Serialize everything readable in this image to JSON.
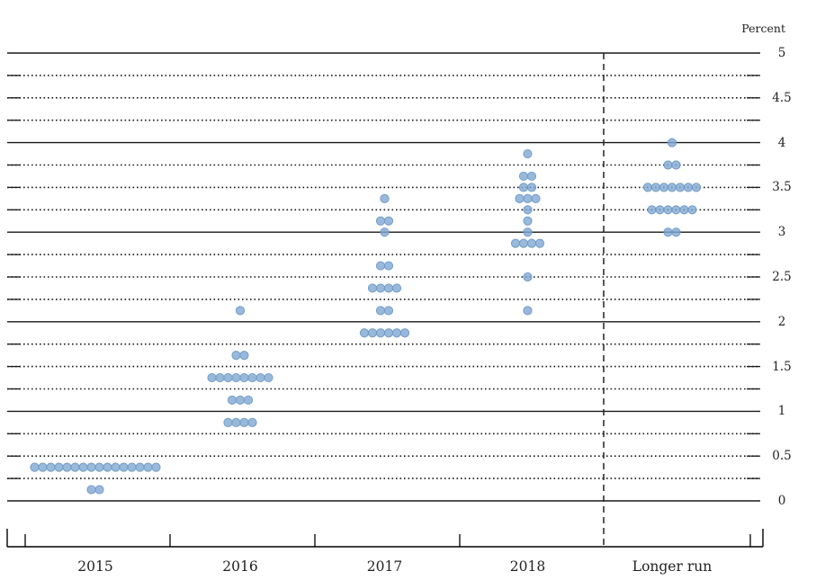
{
  "chart_data": {
    "type": "scatter",
    "subtype": "fomc-dot-plot",
    "unit_label": "Percent",
    "x_categories": [
      "2015",
      "2016",
      "2017",
      "2018",
      "Longer run"
    ],
    "y_axis": {
      "min": 0,
      "max": 5,
      "major_tick_interval": 0.5,
      "minor_grid_interval": 0.25,
      "tick_labels": [
        "5",
        "4.5",
        "4",
        "3.5",
        "3",
        "2.5",
        "2",
        "1.5",
        "1",
        "0.5",
        "0"
      ],
      "solid_line_values": [
        0,
        1,
        2,
        3,
        4,
        5
      ],
      "grid": "dotted-minor"
    },
    "separator": {
      "style": "dashed-vertical-line",
      "between": [
        "2018",
        "Longer run"
      ]
    },
    "series": [
      {
        "category": "2015",
        "dots": [
          {
            "rate": 0.375,
            "count": 16
          },
          {
            "rate": 0.125,
            "count": 2
          }
        ]
      },
      {
        "category": "2016",
        "dots": [
          {
            "rate": 2.125,
            "count": 1
          },
          {
            "rate": 1.625,
            "count": 2
          },
          {
            "rate": 1.375,
            "count": 8
          },
          {
            "rate": 1.125,
            "count": 3
          },
          {
            "rate": 0.875,
            "count": 4
          }
        ]
      },
      {
        "category": "2017",
        "dots": [
          {
            "rate": 3.375,
            "count": 1
          },
          {
            "rate": 3.125,
            "count": 2
          },
          {
            "rate": 3.0,
            "count": 1
          },
          {
            "rate": 2.625,
            "count": 2
          },
          {
            "rate": 2.375,
            "count": 4
          },
          {
            "rate": 2.125,
            "count": 2
          },
          {
            "rate": 1.875,
            "count": 6
          }
        ]
      },
      {
        "category": "2018",
        "dots": [
          {
            "rate": 3.875,
            "count": 1
          },
          {
            "rate": 3.625,
            "count": 2
          },
          {
            "rate": 3.5,
            "count": 2
          },
          {
            "rate": 3.375,
            "count": 3
          },
          {
            "rate": 3.25,
            "count": 1
          },
          {
            "rate": 3.125,
            "count": 1
          },
          {
            "rate": 3.0,
            "count": 1
          },
          {
            "rate": 2.875,
            "count": 4
          },
          {
            "rate": 2.5,
            "count": 1
          },
          {
            "rate": 2.125,
            "count": 1
          }
        ]
      },
      {
        "category": "Longer run",
        "dots": [
          {
            "rate": 4.0,
            "count": 1
          },
          {
            "rate": 3.75,
            "count": 2
          },
          {
            "rate": 3.5,
            "count": 7
          },
          {
            "rate": 3.25,
            "count": 6
          },
          {
            "rate": 3.0,
            "count": 2
          }
        ]
      }
    ],
    "colors": {
      "dot_fill": "#7fa8d2",
      "dot_edge": "#6997c5",
      "axis_line": "#000000",
      "gridline": "#1a1a1a"
    }
  }
}
